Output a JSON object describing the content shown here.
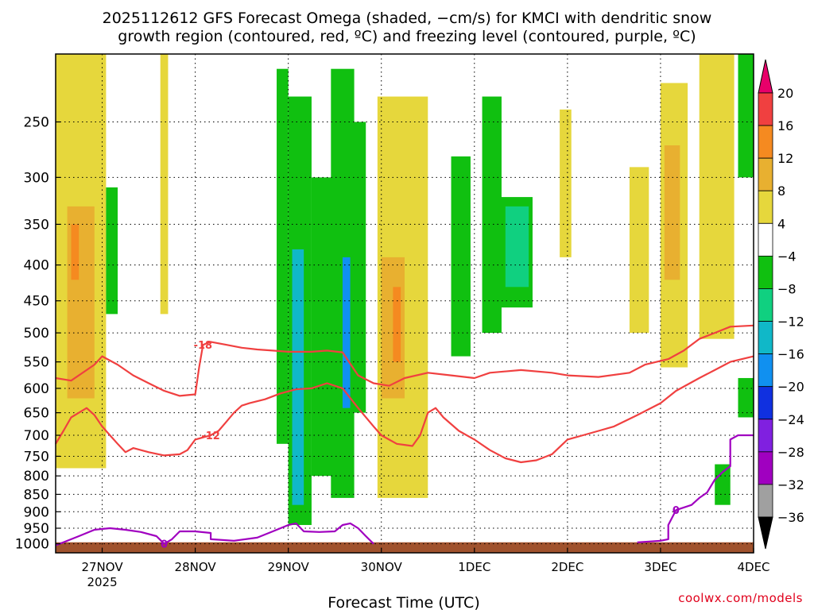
{
  "title_line1": "2025112612 GFS Forecast Omega (shaded, −cm/s) for KMCI with dendritic snow",
  "title_line2": "growth region (contoured, red, ºC) and freezing level (contoured, purple, ºC)",
  "credit": "coolwx.com/models",
  "chart_data": {
    "type": "heatmap",
    "title": "2025112612 GFS Forecast Omega (shaded, −cm/s) for KMCI with dendritic snow growth region (contoured, red, ºC) and freezing level (contoured, purple, ºC)",
    "xlabel": "Forecast Time (UTC)",
    "ylabel": "",
    "x_ticks": [
      {
        "label": "27NOV",
        "sub": "2025",
        "hours": 12
      },
      {
        "label": "28NOV",
        "sub": "",
        "hours": 36
      },
      {
        "label": "29NOV",
        "sub": "",
        "hours": 60
      },
      {
        "label": "30NOV",
        "sub": "",
        "hours": 84
      },
      {
        "label": "1DEC",
        "sub": "",
        "hours": 108
      },
      {
        "label": "2DEC",
        "sub": "",
        "hours": 132
      },
      {
        "label": "3DEC",
        "sub": "",
        "hours": 156
      },
      {
        "label": "4DEC",
        "sub": "",
        "hours": 180
      }
    ],
    "xlim_hours": [
      0,
      180
    ],
    "y_ticks": [
      250,
      300,
      350,
      400,
      450,
      500,
      550,
      600,
      650,
      700,
      750,
      800,
      850,
      900,
      950,
      1000
    ],
    "ylim": [
      200,
      1030
    ],
    "grid": true,
    "colorbar": {
      "labels": [
        "20",
        "16",
        "12",
        "8",
        "4",
        "−4",
        "−8",
        "−12",
        "−16",
        "−20",
        "−24",
        "−28",
        "−32",
        "−36"
      ],
      "top_arrow": "#e8006a",
      "bottom_arrow": "#000000",
      "colors": [
        "#f04040",
        "#f58a20",
        "#e8b030",
        "#e6d73c",
        "#ffffff",
        "#10c010",
        "#10d080",
        "#10b8c8",
        "#1090f0",
        "#1030e0",
        "#8020e0",
        "#a000c0",
        "#a0a0a0"
      ]
    },
    "shaded_regions": [
      {
        "hours": [
          0,
          13
        ],
        "p": [
          200,
          780
        ],
        "color": "#e6d73c"
      },
      {
        "hours": [
          3,
          10
        ],
        "p": [
          330,
          620
        ],
        "color": "#e8b030"
      },
      {
        "hours": [
          4,
          6
        ],
        "p": [
          350,
          420
        ],
        "color": "#f58a20"
      },
      {
        "hours": [
          13,
          16
        ],
        "p": [
          310,
          470
        ],
        "color": "#10c010"
      },
      {
        "hours": [
          27,
          29
        ],
        "p": [
          200,
          470
        ],
        "color": "#e6d73c"
      },
      {
        "hours": [
          57,
          60
        ],
        "p": [
          210,
          720
        ],
        "color": "#10c010"
      },
      {
        "hours": [
          60,
          66
        ],
        "p": [
          230,
          940
        ],
        "color": "#10c010"
      },
      {
        "hours": [
          61,
          64
        ],
        "p": [
          380,
          880
        ],
        "color": "#10b8c8"
      },
      {
        "hours": [
          66,
          72
        ],
        "p": [
          300,
          800
        ],
        "color": "#10c010"
      },
      {
        "hours": [
          71,
          77
        ],
        "p": [
          210,
          860
        ],
        "color": "#10c010"
      },
      {
        "hours": [
          74,
          76
        ],
        "p": [
          390,
          640
        ],
        "color": "#1090f0"
      },
      {
        "hours": [
          76,
          80
        ],
        "p": [
          250,
          650
        ],
        "color": "#10c010"
      },
      {
        "hours": [
          83,
          96
        ],
        "p": [
          230,
          860
        ],
        "color": "#e6d73c"
      },
      {
        "hours": [
          84,
          90
        ],
        "p": [
          390,
          620
        ],
        "color": "#e8b030"
      },
      {
        "hours": [
          87,
          89
        ],
        "p": [
          430,
          550
        ],
        "color": "#f58a20"
      },
      {
        "hours": [
          102,
          107
        ],
        "p": [
          280,
          540
        ],
        "color": "#10c010"
      },
      {
        "hours": [
          110,
          115
        ],
        "p": [
          230,
          500
        ],
        "color": "#10c010"
      },
      {
        "hours": [
          114,
          123
        ],
        "p": [
          320,
          460
        ],
        "color": "#10c010"
      },
      {
        "hours": [
          116,
          122
        ],
        "p": [
          330,
          430
        ],
        "color": "#10d080"
      },
      {
        "hours": [
          130,
          133
        ],
        "p": [
          240,
          390
        ],
        "color": "#e6d73c"
      },
      {
        "hours": [
          148,
          153
        ],
        "p": [
          290,
          500
        ],
        "color": "#e6d73c"
      },
      {
        "hours": [
          156,
          163
        ],
        "p": [
          220,
          560
        ],
        "color": "#e6d73c"
      },
      {
        "hours": [
          157,
          161
        ],
        "p": [
          270,
          420
        ],
        "color": "#e8b030"
      },
      {
        "hours": [
          166,
          175
        ],
        "p": [
          200,
          510
        ],
        "color": "#e6d73c"
      },
      {
        "hours": [
          176,
          180
        ],
        "p": [
          200,
          300
        ],
        "color": "#10c010"
      },
      {
        "hours": [
          170,
          174
        ],
        "p": [
          770,
          880
        ],
        "color": "#10c010"
      },
      {
        "hours": [
          176,
          180
        ],
        "p": [
          580,
          660
        ],
        "color": "#10c010"
      }
    ],
    "contours": [
      {
        "label": "-18",
        "color": "#f04040",
        "points": [
          [
            0,
            580
          ],
          [
            4,
            585
          ],
          [
            8,
            565
          ],
          [
            10,
            555
          ],
          [
            12,
            540
          ],
          [
            16,
            555
          ],
          [
            20,
            575
          ],
          [
            24,
            590
          ],
          [
            28,
            605
          ],
          [
            32,
            615
          ],
          [
            36,
            612
          ],
          [
            37,
            560
          ],
          [
            38,
            520
          ],
          [
            40,
            515
          ],
          [
            44,
            520
          ],
          [
            48,
            525
          ],
          [
            52,
            528
          ],
          [
            56,
            530
          ],
          [
            60,
            532
          ],
          [
            66,
            532
          ],
          [
            70,
            530
          ],
          [
            74,
            533
          ],
          [
            78,
            575
          ],
          [
            82,
            590
          ],
          [
            86,
            595
          ],
          [
            90,
            580
          ],
          [
            96,
            570
          ],
          [
            102,
            575
          ],
          [
            108,
            580
          ],
          [
            112,
            570
          ],
          [
            120,
            565
          ],
          [
            128,
            570
          ],
          [
            132,
            575
          ],
          [
            140,
            578
          ],
          [
            148,
            570
          ],
          [
            152,
            555
          ],
          [
            158,
            545
          ],
          [
            162,
            530
          ],
          [
            166,
            510
          ],
          [
            170,
            500
          ],
          [
            174,
            490
          ],
          [
            180,
            488
          ]
        ]
      },
      {
        "label": "-12",
        "color": "#f04040",
        "points": [
          [
            0,
            720
          ],
          [
            2,
            690
          ],
          [
            4,
            660
          ],
          [
            6,
            650
          ],
          [
            8,
            640
          ],
          [
            10,
            655
          ],
          [
            12,
            680
          ],
          [
            14,
            700
          ],
          [
            16,
            720
          ],
          [
            18,
            740
          ],
          [
            20,
            730
          ],
          [
            24,
            740
          ],
          [
            28,
            748
          ],
          [
            32,
            745
          ],
          [
            34,
            735
          ],
          [
            36,
            710
          ],
          [
            40,
            700
          ],
          [
            42,
            690
          ],
          [
            44,
            670
          ],
          [
            46,
            650
          ],
          [
            48,
            635
          ],
          [
            50,
            630
          ],
          [
            54,
            622
          ],
          [
            58,
            610
          ],
          [
            62,
            602
          ],
          [
            66,
            600
          ],
          [
            70,
            590
          ],
          [
            74,
            600
          ],
          [
            78,
            640
          ],
          [
            82,
            680
          ],
          [
            84,
            700
          ],
          [
            88,
            720
          ],
          [
            92,
            725
          ],
          [
            94,
            700
          ],
          [
            96,
            650
          ],
          [
            98,
            640
          ],
          [
            100,
            660
          ],
          [
            104,
            690
          ],
          [
            108,
            710
          ],
          [
            112,
            735
          ],
          [
            116,
            755
          ],
          [
            120,
            765
          ],
          [
            124,
            760
          ],
          [
            128,
            745
          ],
          [
            132,
            710
          ],
          [
            136,
            700
          ],
          [
            140,
            690
          ],
          [
            144,
            680
          ],
          [
            150,
            655
          ],
          [
            156,
            630
          ],
          [
            160,
            605
          ],
          [
            166,
            580
          ],
          [
            170,
            565
          ],
          [
            174,
            550
          ],
          [
            180,
            540
          ]
        ]
      },
      {
        "label": "0",
        "color": "#a000c0",
        "points": [
          [
            0,
            1005
          ],
          [
            6,
            975
          ],
          [
            10,
            955
          ],
          [
            14,
            950
          ],
          [
            18,
            955
          ],
          [
            22,
            962
          ],
          [
            26,
            975
          ],
          [
            28,
            1000
          ],
          [
            30,
            985
          ],
          [
            32,
            960
          ],
          [
            36,
            960
          ],
          [
            40,
            965
          ],
          [
            40,
            985
          ],
          [
            46,
            990
          ],
          [
            52,
            980
          ],
          [
            56,
            960
          ],
          [
            60,
            940
          ],
          [
            62,
            935
          ],
          [
            64,
            960
          ],
          [
            68,
            962
          ],
          [
            72,
            960
          ],
          [
            74,
            940
          ],
          [
            76,
            935
          ],
          [
            78,
            950
          ],
          [
            80,
            975
          ],
          [
            82,
            1000
          ]
        ]
      },
      {
        "label": "0",
        "color": "#a000c0",
        "points": [
          [
            150,
            995
          ],
          [
            156,
            990
          ],
          [
            158,
            985
          ],
          [
            158,
            940
          ],
          [
            160,
            895
          ],
          [
            164,
            880
          ],
          [
            166,
            860
          ],
          [
            168,
            845
          ],
          [
            170,
            810
          ],
          [
            172,
            790
          ],
          [
            174,
            775
          ],
          [
            174,
            710
          ],
          [
            176,
            700
          ],
          [
            180,
            700
          ]
        ]
      }
    ],
    "terrain": {
      "p_top": 995,
      "color": "#a0522d"
    }
  }
}
